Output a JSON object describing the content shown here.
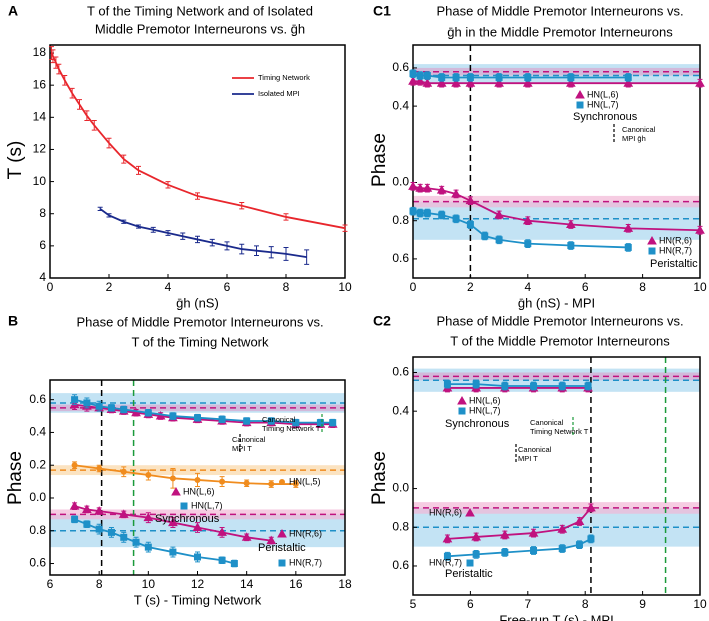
{
  "chart_data": [
    {
      "type": "line",
      "panel": "A",
      "title": [
        "T of the Timing Network and of Isolated",
        "Middle Premotor Interneurons vs. ḡh"
      ],
      "title_color": "#000000",
      "x_label": "ḡh (nS)",
      "y_label": "T (s)",
      "xlim": [
        0,
        10
      ],
      "ylim": [
        4,
        18.5
      ],
      "xticks": [
        0,
        2,
        4,
        6,
        8,
        10
      ],
      "yticks": [
        4,
        6,
        8,
        10,
        12,
        14,
        16,
        18
      ],
      "series": [
        {
          "name": "Timing Network",
          "color": "#e8262c",
          "marker": "none",
          "x": [
            0.05,
            0.1,
            0.2,
            0.3,
            0.5,
            0.75,
            1,
            1.25,
            1.5,
            2,
            2.5,
            3,
            4,
            5,
            6.5,
            8,
            10
          ],
          "values": [
            18,
            17.8,
            17.4,
            17,
            16.3,
            15.5,
            14.8,
            14.1,
            13.5,
            12.4,
            11.4,
            10.7,
            9.8,
            9.1,
            8.5,
            7.8,
            7.1
          ],
          "errors": [
            0.4,
            0.4,
            0.35,
            0.3,
            0.3,
            0.3,
            0.3,
            0.3,
            0.3,
            0.3,
            0.25,
            0.25,
            0.2,
            0.2,
            0.2,
            0.2,
            0.2
          ]
        },
        {
          "name": "Isolated MPI",
          "color": "#1a2a8c",
          "marker": "none",
          "x": [
            1.7,
            2,
            2.5,
            3,
            3.5,
            4,
            4.5,
            5,
            5.5,
            6,
            6.5,
            7,
            7.5,
            8,
            8.7
          ],
          "values": [
            8.3,
            7.9,
            7.5,
            7.2,
            7.0,
            6.8,
            6.6,
            6.4,
            6.2,
            6.0,
            5.8,
            5.7,
            5.6,
            5.5,
            5.3
          ],
          "errors": [
            0.1,
            0.1,
            0.1,
            0.1,
            0.15,
            0.15,
            0.2,
            0.2,
            0.2,
            0.25,
            0.3,
            0.3,
            0.35,
            0.4,
            0.45
          ]
        }
      ],
      "bands": [],
      "vlines": [],
      "annotations": []
    },
    {
      "type": "line",
      "panel": "B",
      "title": [
        "Phase of Middle Premotor Interneurons vs.",
        "T of the Timing Network"
      ],
      "title_color": "#e8262c",
      "x_label": "T (s) - Timing Network",
      "y_label": "Phase",
      "xlim": [
        6,
        18
      ],
      "ylim": [
        -0.47,
        0.72
      ],
      "xticks": [
        6,
        8,
        10,
        12,
        14,
        16,
        18
      ],
      "yticks": [
        0.6,
        0.4,
        0.2,
        {
          "value": 0,
          "label": "0.0"
        },
        {
          "value": -0.2,
          "label": "0.8"
        },
        {
          "value": -0.4,
          "label": "0.6"
        }
      ],
      "series": [
        {
          "name": "HN(L,6)",
          "color": "#c0127f",
          "marker": "triangle",
          "x": [
            7,
            7.5,
            8,
            8.5,
            9,
            9.5,
            10,
            10.5,
            11,
            12,
            13,
            14,
            15,
            16,
            17,
            17.5
          ],
          "values": [
            0.57,
            0.56,
            0.55,
            0.54,
            0.53,
            0.52,
            0.51,
            0.5,
            0.49,
            0.48,
            0.47,
            0.46,
            0.46,
            0.45,
            0.45,
            0.45
          ],
          "errors": [
            0.03,
            0.03,
            0.02,
            0.02,
            0.02,
            0.02,
            0.02,
            0.02,
            0.02,
            0.02,
            0.02,
            0.02,
            0.02,
            0.02,
            0.02,
            0.02
          ]
        },
        {
          "name": "HN(L,7)",
          "color": "#1e90c8",
          "marker": "square",
          "x": [
            7,
            7.5,
            8,
            8.5,
            9,
            10,
            11,
            12,
            13,
            14,
            15,
            16,
            17,
            17.5
          ],
          "values": [
            0.6,
            0.58,
            0.56,
            0.55,
            0.54,
            0.52,
            0.5,
            0.49,
            0.48,
            0.47,
            0.47,
            0.46,
            0.46,
            0.46
          ],
          "errors": [
            0.03,
            0.03,
            0.03,
            0.02,
            0.02,
            0.02,
            0.02,
            0.02,
            0.02,
            0.02,
            0.02,
            0.02,
            0.02,
            0.02
          ]
        },
        {
          "name": "HN(L,5)",
          "color": "#f08c1e",
          "marker": "circle",
          "x": [
            7,
            8,
            9,
            10,
            11,
            12,
            13,
            14,
            15,
            16
          ],
          "values": [
            0.2,
            0.18,
            0.16,
            0.14,
            0.12,
            0.11,
            0.1,
            0.09,
            0.085,
            0.085
          ],
          "errors": [
            0.02,
            0.02,
            0.03,
            0.03,
            0.06,
            0.04,
            0.03,
            0.02,
            0.02,
            0.02
          ]
        },
        {
          "name": "HN(R,6)",
          "color": "#c0127f",
          "marker": "triangle",
          "x": [
            7,
            7.5,
            8,
            9,
            10,
            11,
            12,
            13,
            14,
            15
          ],
          "values": [
            -0.05,
            -0.07,
            -0.08,
            -0.1,
            -0.12,
            -0.15,
            -0.18,
            -0.21,
            -0.24,
            -0.26
          ],
          "errors": [
            0.02,
            0.02,
            0.02,
            0.02,
            0.03,
            0.03,
            0.03,
            0.03,
            0.02,
            0.02
          ]
        },
        {
          "name": "HN(R,7)",
          "color": "#1e90c8",
          "marker": "square",
          "x": [
            7,
            7.5,
            8,
            8.5,
            9,
            9.5,
            10,
            11,
            12,
            13,
            13.5
          ],
          "values": [
            -0.13,
            -0.16,
            -0.19,
            -0.21,
            -0.24,
            -0.27,
            -0.3,
            -0.33,
            -0.36,
            -0.38,
            -0.4
          ],
          "errors": [
            0.02,
            0.02,
            0.03,
            0.03,
            0.03,
            0.03,
            0.03,
            0.03,
            0.03,
            0.02,
            0.02
          ]
        }
      ],
      "bands": [
        {
          "value": 0.58,
          "low": 0.52,
          "high": 0.64,
          "color": "#1e90c8",
          "band_color": "#a9d7ef"
        },
        {
          "value": 0.55,
          "low": 0.53,
          "high": 0.57,
          "color": "#c0127f",
          "band_color": "#d9a6cf"
        },
        {
          "value": 0.17,
          "low": 0.14,
          "high": 0.2,
          "color": "#f08c1e",
          "band_color": "#f9d7a6"
        },
        {
          "value": -0.2,
          "low": -0.3,
          "high": -0.1,
          "color": "#1e90c8",
          "band_color": "#a9d7ef"
        },
        {
          "value": -0.1,
          "low": -0.13,
          "high": -0.07,
          "color": "#c0127f",
          "band_color": "#f2b6d6"
        }
      ],
      "vlines": [
        {
          "value": 8.1,
          "color": "#000000"
        },
        {
          "value": 9.4,
          "color": "#1a9a3a"
        }
      ],
      "annotations": [
        {
          "lines": [
            "Synchronous"
          ],
          "color": "#1e90c8"
        },
        {
          "lines": [
            "Peristaltic"
          ],
          "color": "#c0127f"
        },
        {
          "lines": [
            "Canonical",
            "Timing Network T"
          ],
          "color": "#1a9a3a"
        },
        {
          "lines": [
            "Canonical",
            "MPI T"
          ],
          "color": "#000000"
        }
      ]
    },
    {
      "type": "line",
      "panel": "C1",
      "title": [
        "Phase of Middle Premotor Interneurons vs.",
        "ḡh in the Middle Premotor Interneurons"
      ],
      "title_color": "#e8262c",
      "x_label": "ḡh (nS) - MPI",
      "y_label": "Phase",
      "xlim": [
        0,
        10
      ],
      "ylim": [
        -0.5,
        0.72
      ],
      "xticks": [
        0,
        2,
        4,
        6,
        8,
        10
      ],
      "yticks": [
        0.6,
        0.4,
        {
          "value": 0,
          "label": "0.0"
        },
        {
          "value": -0.2,
          "label": "0.8"
        },
        {
          "value": -0.4,
          "label": "0.6"
        }
      ],
      "series": [
        {
          "name": "HN(L,6)",
          "color": "#c0127f",
          "marker": "triangle",
          "x": [
            0,
            0.25,
            0.5,
            1,
            1.5,
            2,
            3,
            4,
            5.5,
            7.5,
            10
          ],
          "values": [
            0.53,
            0.53,
            0.52,
            0.52,
            0.52,
            0.52,
            0.52,
            0.52,
            0.52,
            0.52,
            0.52
          ],
          "errors": [
            0.02,
            0.02,
            0.02,
            0.02,
            0.02,
            0.02,
            0.02,
            0.02,
            0.02,
            0.02,
            0.02
          ]
        },
        {
          "name": "HN(L,7)",
          "color": "#1e90c8",
          "marker": "square",
          "x": [
            0,
            0.25,
            0.5,
            1,
            1.5,
            2,
            3,
            4,
            5.5,
            7.5
          ],
          "values": [
            0.57,
            0.56,
            0.56,
            0.55,
            0.55,
            0.55,
            0.55,
            0.55,
            0.55,
            0.55
          ],
          "errors": [
            0.02,
            0.02,
            0.02,
            0.02,
            0.02,
            0.02,
            0.02,
            0.02,
            0.02,
            0.02
          ]
        },
        {
          "name": "HN(R,6)",
          "color": "#c0127f",
          "marker": "triangle",
          "x": [
            0,
            0.25,
            0.5,
            1,
            1.5,
            2,
            3,
            4,
            5.5,
            7.5,
            10
          ],
          "values": [
            -0.02,
            -0.03,
            -0.03,
            -0.04,
            -0.06,
            -0.095,
            -0.17,
            -0.2,
            -0.22,
            -0.24,
            -0.25
          ],
          "errors": [
            0.02,
            0.02,
            0.02,
            0.02,
            0.02,
            0.02,
            0.02,
            0.02,
            0.02,
            0.02,
            0.02
          ]
        },
        {
          "name": "HN(R,7)",
          "color": "#1e90c8",
          "marker": "square",
          "x": [
            0,
            0.25,
            0.5,
            1,
            1.5,
            2,
            2.5,
            3,
            4,
            5.5,
            7.5
          ],
          "values": [
            -0.15,
            -0.16,
            -0.16,
            -0.17,
            -0.19,
            -0.22,
            -0.28,
            -0.3,
            -0.32,
            -0.33,
            -0.34
          ],
          "errors": [
            0.02,
            0.02,
            0.02,
            0.02,
            0.02,
            0.02,
            0.02,
            0.02,
            0.02,
            0.02,
            0.02
          ]
        }
      ],
      "bands": [
        {
          "value": 0.56,
          "low": 0.52,
          "high": 0.62,
          "color": "#1e90c8",
          "band_color": "#a9d7ef"
        },
        {
          "value": 0.58,
          "low": 0.56,
          "high": 0.6,
          "color": "#c0127f",
          "band_color": "#d9a6cf"
        },
        {
          "value": -0.19,
          "low": -0.3,
          "high": -0.1,
          "color": "#1e90c8",
          "band_color": "#a9d7ef"
        },
        {
          "value": -0.1,
          "low": -0.13,
          "high": -0.07,
          "color": "#c0127f",
          "band_color": "#f2b6d6"
        }
      ],
      "vlines": [
        {
          "value": 2,
          "color": "#000000"
        }
      ],
      "annotations": [
        {
          "lines": [
            "Synchronous"
          ],
          "color": "#1e90c8"
        },
        {
          "lines": [
            "Peristaltic"
          ],
          "color": "#c0127f"
        },
        {
          "lines": [
            "Canonical",
            "MPI ḡh"
          ],
          "color": "#000000"
        }
      ]
    },
    {
      "type": "line",
      "panel": "C2",
      "title": [
        "Phase of Middle Premotor Interneurons vs.",
        "T of the Middle Premotor Interneurons"
      ],
      "title_color": "#e8262c",
      "x_label": "Free-run T (s) - MPI",
      "y_label": "Phase",
      "xlim": [
        5,
        10
      ],
      "ylim": [
        -0.55,
        0.68
      ],
      "xticks": [
        5,
        6,
        7,
        8,
        9,
        10
      ],
      "yticks": [
        0.6,
        0.4,
        {
          "value": 0,
          "label": "0.0"
        },
        {
          "value": -0.2,
          "label": "0.8"
        },
        {
          "value": -0.4,
          "label": "0.6"
        }
      ],
      "series": [
        {
          "name": "HN(L,6)",
          "color": "#c0127f",
          "marker": "triangle",
          "x": [
            5.6,
            6.1,
            6.6,
            7.1,
            7.6,
            8.05
          ],
          "values": [
            0.52,
            0.52,
            0.52,
            0.52,
            0.52,
            0.52
          ],
          "errors": [
            0.02,
            0.02,
            0.02,
            0.02,
            0.02,
            0.02
          ]
        },
        {
          "name": "HN(L,7)",
          "color": "#1e90c8",
          "marker": "square",
          "x": [
            5.6,
            6.1,
            6.6,
            7.1,
            7.6,
            8.05
          ],
          "values": [
            0.54,
            0.54,
            0.53,
            0.53,
            0.53,
            0.53
          ],
          "errors": [
            0.02,
            0.02,
            0.02,
            0.02,
            0.02,
            0.02
          ]
        },
        {
          "name": "HN(R,6)",
          "color": "#c0127f",
          "marker": "triangle",
          "x": [
            5.6,
            6.1,
            6.6,
            7.1,
            7.6,
            7.9,
            8.1
          ],
          "values": [
            -0.26,
            -0.25,
            -0.24,
            -0.23,
            -0.21,
            -0.17,
            -0.1
          ],
          "errors": [
            0.02,
            0.02,
            0.02,
            0.02,
            0.02,
            0.02,
            0.02
          ]
        },
        {
          "name": "HN(R,7)",
          "color": "#1e90c8",
          "marker": "square",
          "x": [
            5.6,
            6.1,
            6.6,
            7.1,
            7.6,
            7.9,
            8.1
          ],
          "values": [
            -0.35,
            -0.34,
            -0.33,
            -0.32,
            -0.31,
            -0.29,
            -0.26
          ],
          "errors": [
            0.02,
            0.02,
            0.02,
            0.02,
            0.02,
            0.02,
            0.02
          ]
        }
      ],
      "bands": [
        {
          "value": 0.56,
          "low": 0.5,
          "high": 0.62,
          "color": "#1e90c8",
          "band_color": "#a9d7ef"
        },
        {
          "value": 0.58,
          "low": 0.56,
          "high": 0.6,
          "color": "#c0127f",
          "band_color": "#d9a6cf"
        },
        {
          "value": -0.2,
          "low": -0.3,
          "high": -0.1,
          "color": "#1e90c8",
          "band_color": "#a9d7ef"
        },
        {
          "value": -0.1,
          "low": -0.13,
          "high": -0.07,
          "color": "#c0127f",
          "band_color": "#f2b6d6"
        }
      ],
      "vlines": [
        {
          "value": 8.1,
          "color": "#000000"
        },
        {
          "value": 9.4,
          "color": "#1a9a3a"
        }
      ],
      "annotations": [
        {
          "lines": [
            "Synchronous"
          ],
          "color": "#1e90c8"
        },
        {
          "lines": [
            "Peristaltic"
          ],
          "color": "#c0127f"
        },
        {
          "lines": [
            "Canonical",
            "Timing Network T"
          ],
          "color": "#1a9a3a"
        },
        {
          "lines": [
            "Canonical",
            "MPI T"
          ],
          "color": "#000000"
        }
      ]
    }
  ]
}
